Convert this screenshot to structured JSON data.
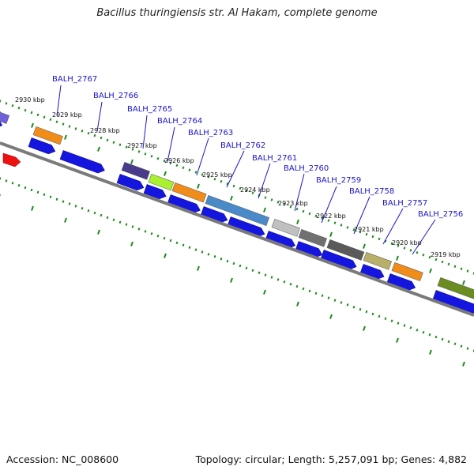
{
  "title": "Bacillus thuringiensis str. Al Hakam, complete genome",
  "accession": "Accession: NC_008600",
  "topology": "Topology: circular; Length: 5,257,091 bp; Genes: 4,882",
  "colors": {
    "forward_cds": "#1515e0",
    "backbone": "#7a7a7a",
    "cog_dots": "#1e8a1e",
    "label_blue": "#1a14c8",
    "red_feature": "#ee1111"
  },
  "scale_labels": [
    "2930 kbp",
    "2929 kbp",
    "2928 kbp",
    "2927 kbp",
    "2926 kbp",
    "2925 kbp",
    "2924 kbp",
    "2923 kbp",
    "2922 kbp",
    "2921 kbp",
    "2920 kbp",
    "2919 kbp"
  ],
  "genes": [
    "BALH_2767",
    "BALH_2766",
    "BALH_2765",
    "BALH_2764",
    "BALH_2763",
    "BALH_2762",
    "BALH_2761",
    "BALH_2760",
    "BALH_2759",
    "BALH_2758",
    "BALH_2757",
    "BALH_2756"
  ],
  "cog_colors": [
    "#7060d8",
    "#f08c1a",
    "#4a3a8c",
    "#a8f030",
    "#f08c1a",
    "#4a8ac8",
    "#c0c0c0",
    "#707070",
    "#5a5a5a",
    "#b8b068",
    "#f08c1a",
    "#6a8c20"
  ]
}
